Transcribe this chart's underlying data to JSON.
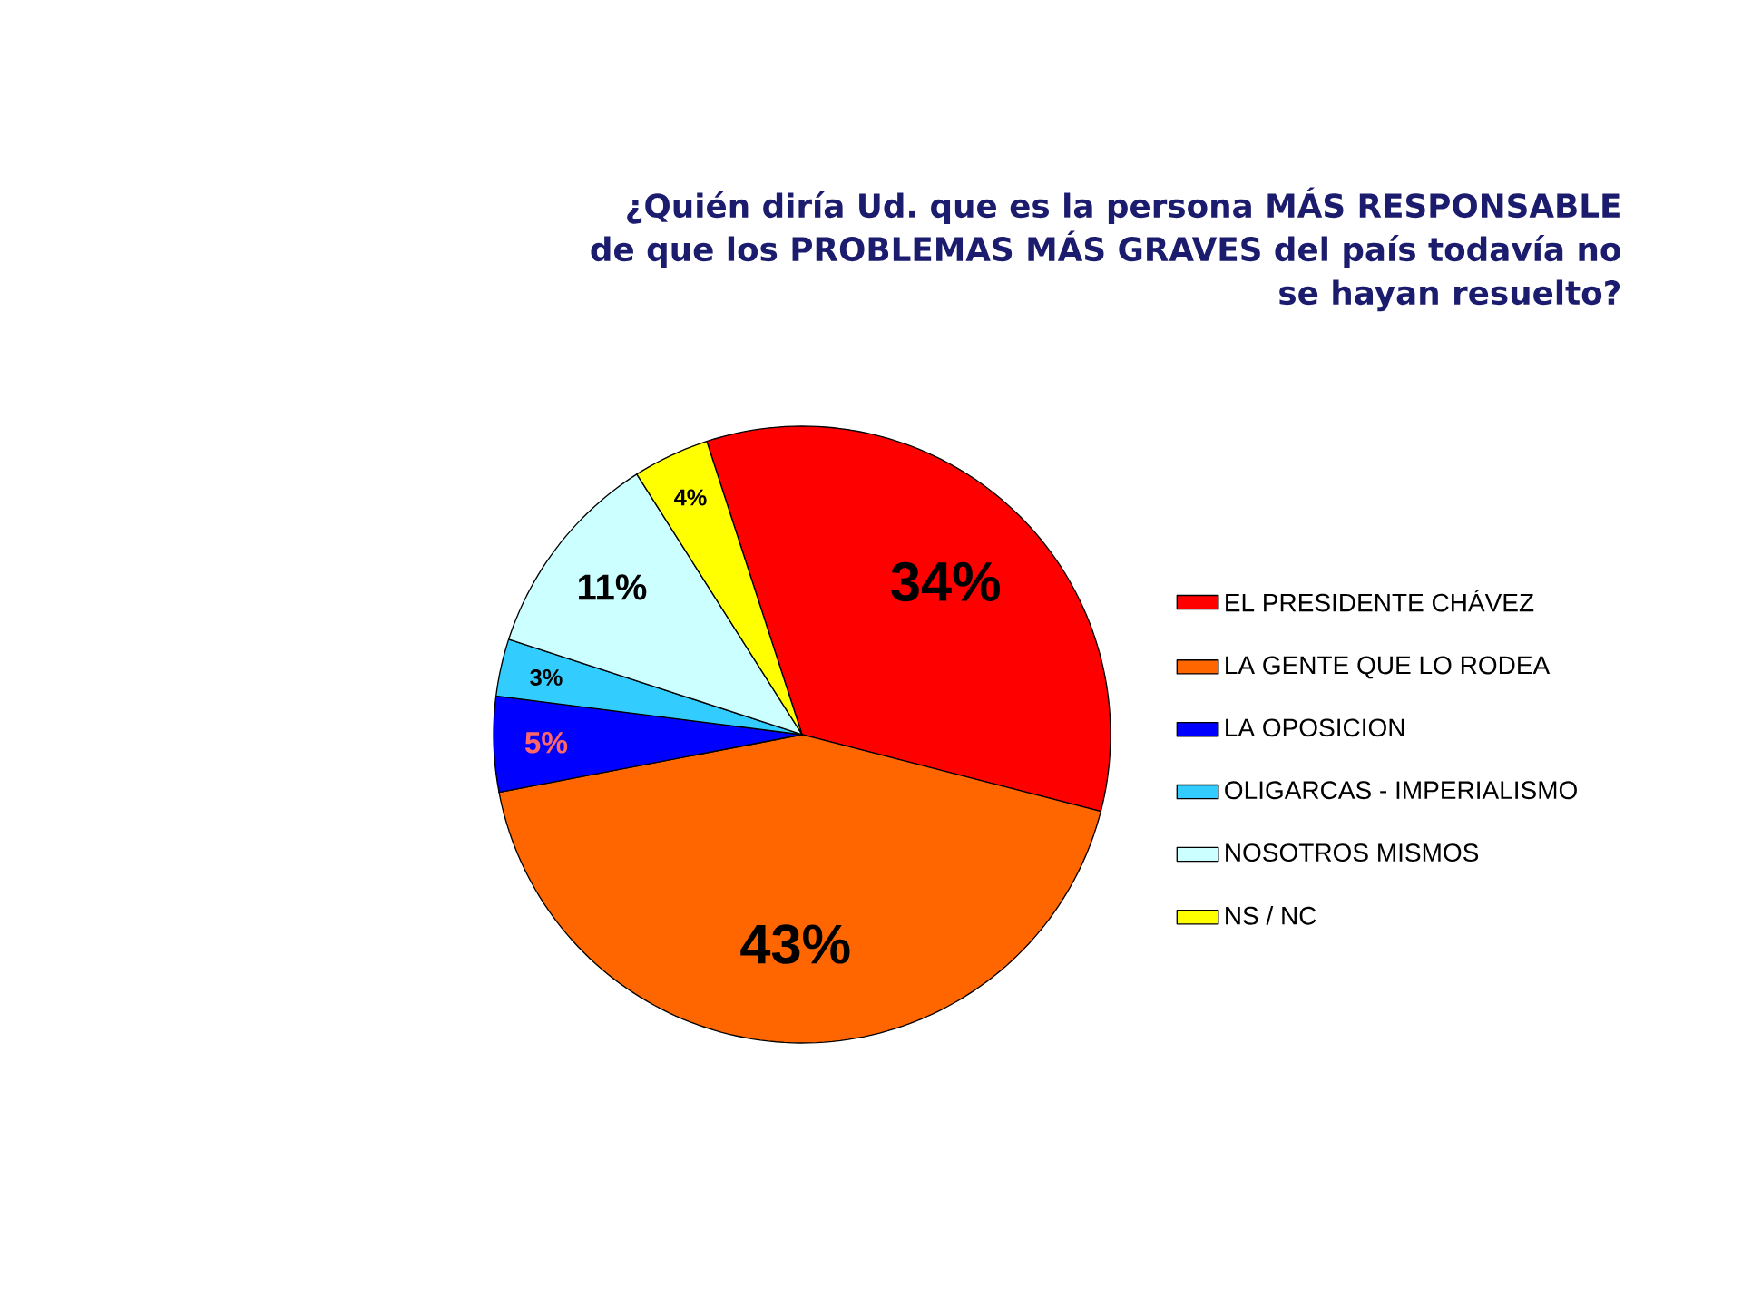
{
  "chart_data": {
    "type": "pie",
    "title": "¿Quién diría Ud. que es la persona MÁS RESPONSABLE de que los PROBLEMAS MÁS GRAVES del país todavía no se hayan resuelto?",
    "categories": [
      "EL PRESIDENTE CHÁVEZ",
      "LA GENTE QUE LO RODEA",
      "LA OPOSICION",
      "OLIGARCAS - IMPERIALISMO",
      "NOSOTROS MISMOS",
      "NS / NC"
    ],
    "values": [
      34,
      43,
      5,
      3,
      11,
      4
    ],
    "value_labels": [
      "34%",
      "43%",
      "5%",
      "3%",
      "11%",
      "4%"
    ],
    "colors": [
      "#ff0000",
      "#ff6600",
      "#0000ff",
      "#33ccff",
      "#ccffff",
      "#ffff00"
    ],
    "legend": "right"
  }
}
